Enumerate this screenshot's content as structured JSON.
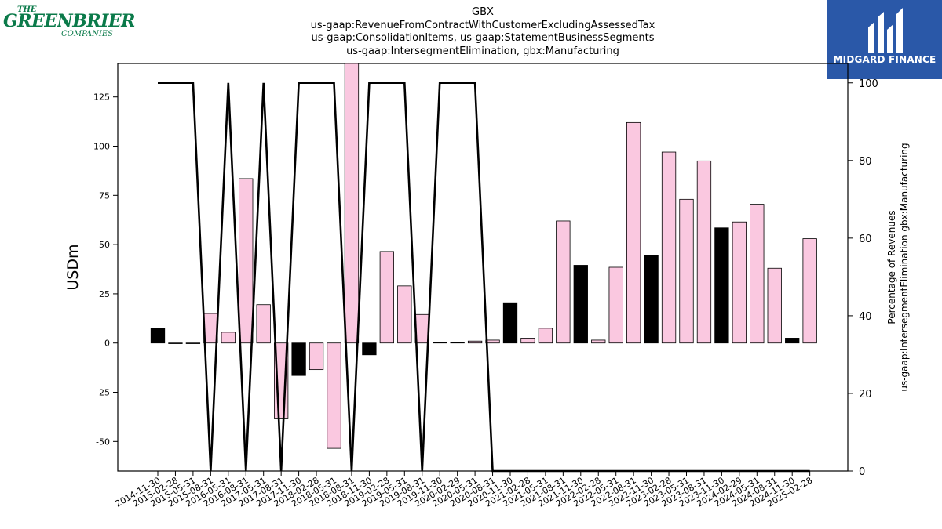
{
  "header": {
    "title_lines": [
      "GBX",
      "us-gaap:RevenueFromContractWithCustomerExcludingAssessedTax",
      "us-gaap:ConsolidationItems, us-gaap:StatementBusinessSegments",
      "us-gaap:IntersegmentElimination, gbx:Manufacturing"
    ]
  },
  "logos": {
    "left": {
      "top": "THE",
      "main": "GREENBRIER",
      "bottom": "COMPANIES",
      "color": "#0b7a4a"
    },
    "right": {
      "brand": "MIDGARD FINANCE",
      "background": "#2a58a8"
    }
  },
  "chart_data": {
    "type": "bar",
    "ylabel": "USDm",
    "y2label_lines": [
      "Percentage of Revenues",
      "us-gaap:IntersegmentElimination gbx:Manufacturing"
    ],
    "ylim": [
      -65,
      142
    ],
    "y2lim": [
      0,
      105
    ],
    "yticks": [
      -50,
      -25,
      0,
      25,
      50,
      75,
      100,
      125
    ],
    "y2ticks": [
      0,
      20,
      40,
      60,
      80,
      100
    ],
    "grid": false,
    "colors": {
      "pink": "#fac8e0",
      "black": "#000000",
      "line": "#000000"
    },
    "categories": [
      "2014-11-30",
      "2015-02-28",
      "2015-05-31",
      "2015-08-31",
      "2016-05-31",
      "2016-08-31",
      "2017-05-31",
      "2017-08-31",
      "2017-11-30",
      "2018-02-28",
      "2018-05-31",
      "2018-08-31",
      "2018-11-30",
      "2019-02-28",
      "2019-05-31",
      "2019-08-31",
      "2019-11-30",
      "2020-02-29",
      "2020-05-31",
      "2020-08-31",
      "2020-11-30",
      "2021-02-28",
      "2021-05-31",
      "2021-08-31",
      "2021-11-30",
      "2022-02-28",
      "2022-05-31",
      "2022-08-31",
      "2022-11-30",
      "2023-02-28",
      "2023-05-31",
      "2023-08-31",
      "2023-11-30",
      "2024-02-29",
      "2024-05-31",
      "2024-08-31",
      "2024-11-30",
      "2025-02-28"
    ],
    "series": [
      {
        "type": "bar",
        "values": [
          7.5,
          0,
          0,
          15,
          5.5,
          83.5,
          19.5,
          -38.5,
          -16.5,
          -13.5,
          -53.5,
          142,
          -6,
          46.5,
          29,
          14.5,
          0.5,
          0.5,
          1,
          1.5,
          20.5,
          2.5,
          7.5,
          62,
          39.5,
          1.5,
          38.5,
          112,
          44.5,
          97,
          73,
          92.5,
          58.5,
          61.5,
          70.5,
          38,
          2.5,
          53
        ],
        "colors": [
          "black",
          "black",
          "black",
          "pink",
          "pink",
          "pink",
          "pink",
          "pink",
          "black",
          "pink",
          "pink",
          "pink",
          "black",
          "pink",
          "pink",
          "pink",
          "black",
          "black",
          "pink",
          "pink",
          "black",
          "pink",
          "pink",
          "pink",
          "black",
          "pink",
          "pink",
          "pink",
          "black",
          "pink",
          "pink",
          "pink",
          "black",
          "pink",
          "pink",
          "pink",
          "black",
          "pink"
        ]
      },
      {
        "type": "line",
        "axis": "right",
        "values": [
          100,
          100,
          100,
          0,
          100,
          0,
          100,
          0,
          100,
          100,
          100,
          0,
          100,
          100,
          100,
          0,
          100,
          100,
          100,
          0,
          0,
          0,
          0,
          0,
          0,
          0,
          0,
          0,
          0,
          0,
          0,
          0,
          0,
          0,
          0,
          0,
          0,
          0
        ]
      }
    ]
  }
}
